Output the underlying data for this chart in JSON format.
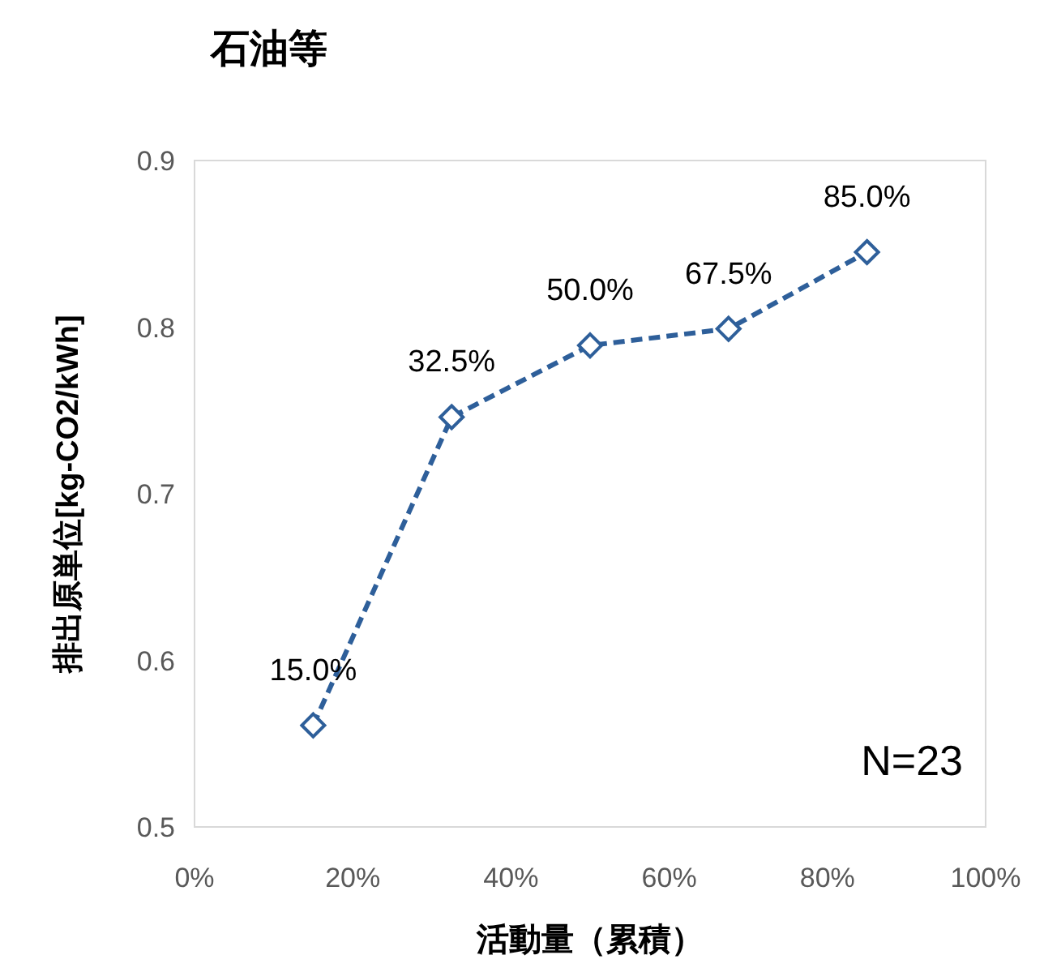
{
  "chart_data": {
    "type": "line",
    "title": "石油等",
    "xlabel": "活動量（累積）",
    "ylabel": "排出原単位[kg-CO2/kWh]",
    "x": [
      15,
      32.5,
      50,
      67.5,
      85
    ],
    "series": [
      {
        "color": "#2e5f9a",
        "values": [
          0.561,
          0.746,
          0.789,
          0.799,
          0.845
        ]
      }
    ],
    "xlim": [
      0,
      100
    ],
    "xticks": [
      {
        "value": 0,
        "label": "0%"
      },
      {
        "value": 20,
        "label": "20%"
      },
      {
        "value": 40,
        "label": "40%"
      },
      {
        "value": 60,
        "label": "60%"
      },
      {
        "value": 80,
        "label": "80%"
      },
      {
        "value": 100,
        "label": "100%"
      }
    ],
    "ylim": [
      0.5,
      0.9
    ],
    "yticks": [
      0.5,
      0.6,
      0.7,
      0.8,
      0.9
    ],
    "marker": "diamond",
    "line_style": "dashed",
    "grid": false,
    "annotations": [
      {
        "text": "15.0%",
        "x": 15,
        "y": 0.561
      },
      {
        "text": "32.5%",
        "x": 32.5,
        "y": 0.746
      },
      {
        "text": "50.0%",
        "x": 50,
        "y": 0.789
      },
      {
        "text": "67.5%",
        "x": 67.5,
        "y": 0.799
      },
      {
        "text": "85.0%",
        "x": 85,
        "y": 0.845
      },
      "N=23"
    ]
  }
}
